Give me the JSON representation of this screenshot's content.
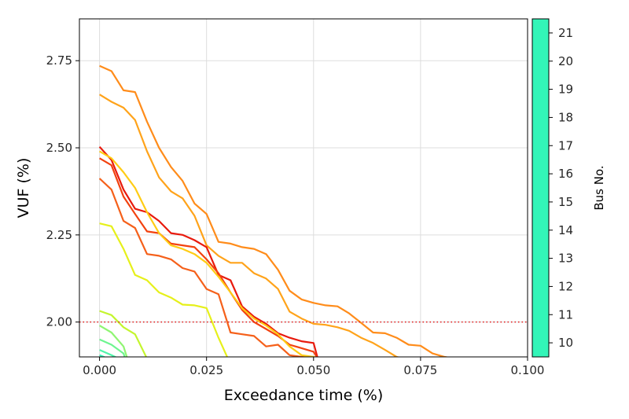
{
  "chart_data": {
    "type": "line",
    "xlabel": "Exceedance time (%)",
    "ylabel": "VUF (%)",
    "xlim": [
      -0.0047,
      0.1
    ],
    "ylim": [
      1.9,
      2.87
    ],
    "grid": true,
    "x_ticks": [
      "0.000",
      "0.025",
      "0.050",
      "0.075",
      "0.100"
    ],
    "x_tick_values": [
      0.0,
      0.025,
      0.05,
      0.075,
      0.1
    ],
    "y_ticks": [
      "2.00",
      "2.25",
      "2.50",
      "2.75"
    ],
    "y_tick_values": [
      2.0,
      2.25,
      2.5,
      2.75
    ],
    "threshold": {
      "value": 2.0,
      "color": "#e41a1c",
      "style": "dotted"
    },
    "colorbar": {
      "label": "Bus No.",
      "min": 9.5,
      "max": 21.5,
      "ticks": [
        "10",
        "11",
        "12",
        "13",
        "14",
        "15",
        "16",
        "17",
        "18",
        "19",
        "20",
        "21"
      ],
      "tick_values": [
        10,
        11,
        12,
        13,
        14,
        15,
        16,
        17,
        18,
        19,
        20,
        21
      ],
      "color": "#33f5b8"
    },
    "series": [
      {
        "color": "#ff8c1a",
        "x": [
          0,
          0.0028,
          0.0056,
          0.0083,
          0.0111,
          0.0139,
          0.0167,
          0.0194,
          0.0222,
          0.025,
          0.0278,
          0.0306,
          0.0333,
          0.0361,
          0.0389,
          0.0417,
          0.0444,
          0.0472,
          0.05,
          0.0528,
          0.0556,
          0.0583,
          0.0611,
          0.0639,
          0.0667,
          0.0694,
          0.0722,
          0.075,
          0.0778,
          0.0806,
          0.083
        ],
        "y": [
          2.735,
          2.72,
          2.665,
          2.66,
          2.575,
          2.5,
          2.445,
          2.405,
          2.34,
          2.31,
          2.23,
          2.225,
          2.215,
          2.21,
          2.195,
          2.15,
          2.09,
          2.065,
          2.055,
          2.048,
          2.045,
          2.025,
          1.998,
          1.97,
          1.968,
          1.955,
          1.935,
          1.932,
          1.91,
          1.9,
          1.895
        ]
      },
      {
        "color": "#ffa31a",
        "x": [
          0,
          0.0028,
          0.0056,
          0.0083,
          0.0111,
          0.0139,
          0.0167,
          0.0194,
          0.0222,
          0.025,
          0.0278,
          0.0306,
          0.0333,
          0.0361,
          0.0389,
          0.0417,
          0.0444,
          0.0472,
          0.05,
          0.0528,
          0.0556,
          0.0583,
          0.0611,
          0.0639,
          0.0667,
          0.0694,
          0.071
        ],
        "y": [
          2.653,
          2.632,
          2.615,
          2.58,
          2.49,
          2.415,
          2.375,
          2.355,
          2.305,
          2.22,
          2.19,
          2.17,
          2.17,
          2.14,
          2.125,
          2.095,
          2.03,
          2.01,
          1.995,
          1.992,
          1.985,
          1.975,
          1.955,
          1.94,
          1.92,
          1.9,
          1.895
        ]
      },
      {
        "color": "#e81a0d",
        "x": [
          0,
          0.0028,
          0.0056,
          0.0083,
          0.0111,
          0.0139,
          0.0167,
          0.0194,
          0.0222,
          0.025,
          0.0278,
          0.0306,
          0.0333,
          0.0361,
          0.0389,
          0.0417,
          0.0444,
          0.0472,
          0.05,
          0.051
        ],
        "y": [
          2.503,
          2.465,
          2.38,
          2.325,
          2.315,
          2.29,
          2.255,
          2.25,
          2.235,
          2.215,
          2.135,
          2.12,
          2.045,
          2.015,
          1.995,
          1.968,
          1.955,
          1.945,
          1.94,
          1.895
        ]
      },
      {
        "color": "#f2420f",
        "x": [
          0,
          0.0028,
          0.0056,
          0.0083,
          0.0111,
          0.0139,
          0.0167,
          0.0194,
          0.0222,
          0.025,
          0.0278,
          0.0306,
          0.0333,
          0.0361,
          0.0389,
          0.0417,
          0.0444,
          0.0472,
          0.05,
          0.051
        ],
        "y": [
          2.47,
          2.45,
          2.36,
          2.31,
          2.26,
          2.255,
          2.225,
          2.22,
          2.215,
          2.18,
          2.14,
          2.085,
          2.035,
          2.0,
          1.98,
          1.96,
          1.935,
          1.925,
          1.915,
          1.895
        ]
      },
      {
        "color": "#f5601a",
        "x": [
          0,
          0.0028,
          0.0056,
          0.0083,
          0.0111,
          0.0139,
          0.0167,
          0.0194,
          0.0222,
          0.025,
          0.0278,
          0.0306,
          0.0333,
          0.0361,
          0.0389,
          0.0417,
          0.0444,
          0.0472,
          0.05,
          0.051
        ],
        "y": [
          2.412,
          2.38,
          2.29,
          2.27,
          2.195,
          2.19,
          2.18,
          2.155,
          2.145,
          2.095,
          2.08,
          1.97,
          1.965,
          1.96,
          1.93,
          1.935,
          1.905,
          1.9,
          1.898,
          1.895
        ]
      },
      {
        "color": "#ffcc14",
        "x": [
          0,
          0.0028,
          0.0056,
          0.0083,
          0.0111,
          0.0139,
          0.0167,
          0.0194,
          0.0222,
          0.025,
          0.0278,
          0.0306,
          0.0333,
          0.0361,
          0.0389,
          0.0417,
          0.0444,
          0.0472,
          0.05,
          0.052
        ],
        "y": [
          2.49,
          2.47,
          2.43,
          2.385,
          2.315,
          2.255,
          2.22,
          2.21,
          2.195,
          2.17,
          2.13,
          2.085,
          2.04,
          2.01,
          1.99,
          1.965,
          1.93,
          1.905,
          1.9,
          1.895
        ]
      },
      {
        "color": "#e6f01a",
        "x": [
          0,
          0.0028,
          0.0056,
          0.0083,
          0.0111,
          0.0139,
          0.0167,
          0.0194,
          0.0222,
          0.025,
          0.0278,
          0.03
        ],
        "y": [
          2.283,
          2.275,
          2.21,
          2.135,
          2.12,
          2.085,
          2.07,
          2.05,
          2.048,
          2.04,
          1.955,
          1.895
        ]
      },
      {
        "color": "#c4f52e",
        "x": [
          0,
          0.0028,
          0.0056,
          0.0083,
          0.0111
        ],
        "y": [
          2.032,
          2.02,
          1.985,
          1.965,
          1.895
        ]
      },
      {
        "color": "#8ff572",
        "x": [
          0,
          0.0028,
          0.0056,
          0.0065
        ],
        "y": [
          1.99,
          1.97,
          1.93,
          1.895
        ]
      },
      {
        "color": "#6ef590",
        "x": [
          0,
          0.0028,
          0.0056,
          0.006
        ],
        "y": [
          1.95,
          1.935,
          1.91,
          1.895
        ]
      },
      {
        "color": "#4ff5aa",
        "x": [
          0,
          0.0028,
          0.0045
        ],
        "y": [
          1.92,
          1.905,
          1.895
        ]
      },
      {
        "color": "#33f5b8",
        "x": [
          0,
          0.002
        ],
        "y": [
          1.905,
          1.895
        ]
      }
    ]
  }
}
